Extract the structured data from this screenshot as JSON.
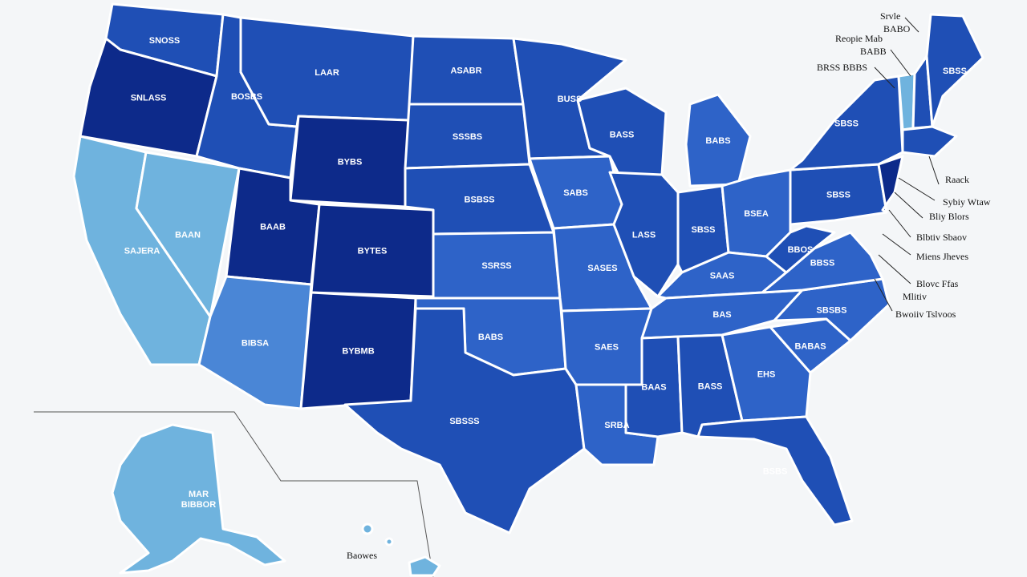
{
  "colors": {
    "background": "#f4f6f8",
    "dark": "#0d2a8a",
    "mid": "#1f4fb5",
    "medium": "#2e63c8",
    "light": "#4a86d6",
    "pale": "#6fb3de",
    "border": "#ffffff"
  },
  "states": [
    {
      "id": "wa",
      "label": "SNOSS",
      "shade": "mid"
    },
    {
      "id": "or",
      "label": "SNLASS",
      "shade": "dark"
    },
    {
      "id": "ca",
      "label": "SAJERA",
      "shade": "pale"
    },
    {
      "id": "nv",
      "label": "BAAN",
      "shade": "pale"
    },
    {
      "id": "id",
      "label": "BOSBS",
      "shade": "mid"
    },
    {
      "id": "mt",
      "label": "LAAR",
      "shade": "mid"
    },
    {
      "id": "wy",
      "label": "BYBS",
      "shade": "dark"
    },
    {
      "id": "ut",
      "label": "BAAB",
      "shade": "dark"
    },
    {
      "id": "co",
      "label": "BYTES",
      "shade": "dark"
    },
    {
      "id": "az",
      "label": "BIBSA",
      "shade": "light"
    },
    {
      "id": "nm",
      "label": "BYBMB",
      "shade": "dark"
    },
    {
      "id": "nd",
      "label": "ASABR",
      "shade": "mid"
    },
    {
      "id": "sd",
      "label": "SSSBS",
      "shade": "mid"
    },
    {
      "id": "ne",
      "label": "BSBSS",
      "shade": "mid"
    },
    {
      "id": "ks",
      "label": "SSRSS",
      "shade": "medium"
    },
    {
      "id": "ok",
      "label": "BABS",
      "shade": "medium"
    },
    {
      "id": "tx",
      "label": "SBSSS",
      "shade": "mid"
    },
    {
      "id": "mn",
      "label": "BUSS",
      "shade": "mid"
    },
    {
      "id": "ia",
      "label": "SABS",
      "shade": "medium"
    },
    {
      "id": "mo",
      "label": "SASES",
      "shade": "medium"
    },
    {
      "id": "ar",
      "label": "SAES",
      "shade": "medium"
    },
    {
      "id": "la",
      "label": "SRBA",
      "shade": "medium"
    },
    {
      "id": "wi",
      "label": "BASS",
      "shade": "mid"
    },
    {
      "id": "il",
      "label": "LASS",
      "shade": "mid"
    },
    {
      "id": "mi",
      "label": "BABS",
      "shade": "medium"
    },
    {
      "id": "in",
      "label": "SBSS",
      "shade": "mid"
    },
    {
      "id": "oh",
      "label": "BSEA",
      "shade": "medium"
    },
    {
      "id": "ky",
      "label": "SAAS",
      "shade": "medium"
    },
    {
      "id": "tn",
      "label": "BAS",
      "shade": "medium"
    },
    {
      "id": "ms",
      "label": "BAAS",
      "shade": "mid"
    },
    {
      "id": "al",
      "label": "BASS",
      "shade": "mid"
    },
    {
      "id": "ga",
      "label": "EHS",
      "shade": "medium"
    },
    {
      "id": "fl",
      "label": "BSBS",
      "shade": "mid"
    },
    {
      "id": "sc",
      "label": "BABAS",
      "shade": "medium"
    },
    {
      "id": "nc",
      "label": "SBSBS",
      "shade": "medium"
    },
    {
      "id": "va",
      "label": "BBSS",
      "shade": "medium"
    },
    {
      "id": "wv",
      "label": "BBOS",
      "shade": "mid"
    },
    {
      "id": "pa",
      "label": "SBSS",
      "shade": "mid"
    },
    {
      "id": "ny",
      "label": "SBSS",
      "shade": "mid"
    },
    {
      "id": "vt",
      "label": "",
      "shade": "pale"
    },
    {
      "id": "nh",
      "label": "",
      "shade": "mid"
    },
    {
      "id": "me",
      "label": "SBSS",
      "shade": "mid"
    },
    {
      "id": "ma",
      "label": "",
      "shade": "mid"
    },
    {
      "id": "nj",
      "label": "",
      "shade": "dark"
    },
    {
      "id": "ak",
      "label": "MAR BIBBOR",
      "shade": "pale"
    },
    {
      "id": "hi",
      "label": "",
      "shade": "pale"
    }
  ],
  "callouts": [
    {
      "text": "Srvle"
    },
    {
      "text": "BABO"
    },
    {
      "text": "Reopie Mab"
    },
    {
      "text": "BABB"
    },
    {
      "text": "BRSS BBBS"
    },
    {
      "text": "Raack"
    },
    {
      "text": "Sybiy Wtaw"
    },
    {
      "text": "Bliy Blors"
    },
    {
      "text": "Blbtiv Sbaov"
    },
    {
      "text": "Miens Jheves"
    },
    {
      "text": "Blovc Ffas"
    },
    {
      "text": "Mlitiv"
    },
    {
      "text": "Bwoiiv Tslvoos"
    }
  ],
  "hawaii_label": "Baowes"
}
